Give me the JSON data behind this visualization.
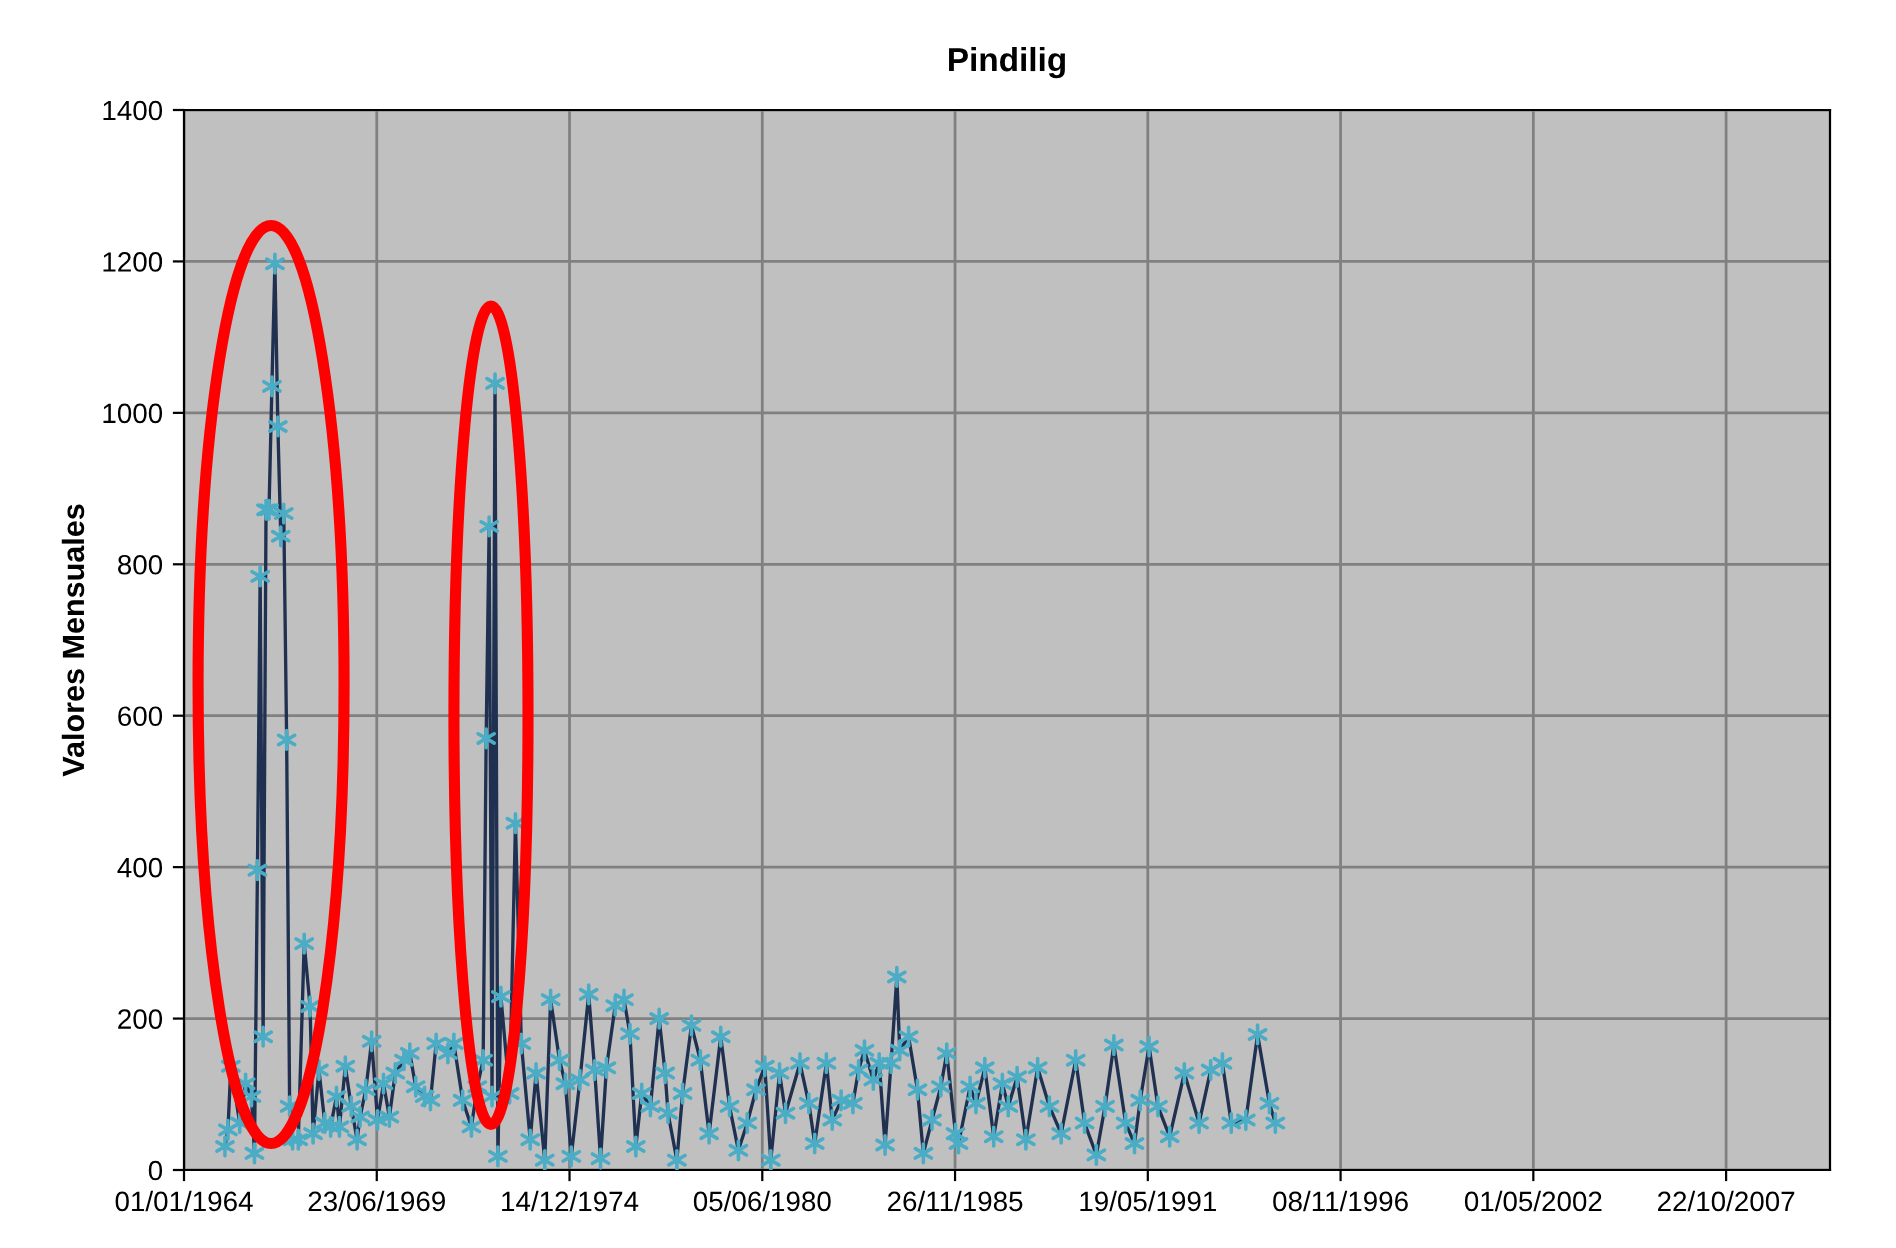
{
  "chart_data": {
    "type": "line",
    "title": "Pindilig",
    "ylabel": "Valores Mensuales",
    "x": [
      "1965-03",
      "1965-04",
      "1965-05",
      "1965-08",
      "1965-10",
      "1965-12",
      "1966-01",
      "1966-02",
      "1966-03",
      "1966-04",
      "1966-05",
      "1966-06",
      "1966-07",
      "1966-08",
      "1966-09",
      "1966-10",
      "1966-11",
      "1966-12",
      "1967-01",
      "1967-02",
      "1967-04",
      "1967-06",
      "1967-08",
      "1967-09",
      "1967-11",
      "1968-01",
      "1968-03",
      "1968-05",
      "1968-06",
      "1968-08",
      "1968-10",
      "1968-12",
      "1969-01",
      "1969-03",
      "1969-05",
      "1969-07",
      "1969-09",
      "1969-11",
      "1970-01",
      "1970-04",
      "1970-06",
      "1970-08",
      "1970-11",
      "1971-01",
      "1971-03",
      "1971-07",
      "1971-09",
      "1971-12",
      "1972-03",
      "1972-05",
      "1972-07",
      "1972-08",
      "1972-09",
      "1972-10",
      "1972-11",
      "1972-12",
      "1973-01",
      "1973-04",
      "1973-06",
      "1973-08",
      "1973-11",
      "1974-01",
      "1974-04",
      "1974-06",
      "1974-09",
      "1974-11",
      "1975-01",
      "1975-04",
      "1975-07",
      "1975-09",
      "1975-11",
      "1976-01",
      "1976-04",
      "1976-07",
      "1976-09",
      "1976-11",
      "1977-01",
      "1977-04",
      "1977-07",
      "1977-09",
      "1977-10",
      "1978-01",
      "1978-03",
      "1978-06",
      "1978-09",
      "1978-12",
      "1979-04",
      "1979-07",
      "1979-10",
      "1980-01",
      "1980-04",
      "1980-07",
      "1980-09",
      "1980-12",
      "1981-02",
      "1981-07",
      "1981-10",
      "1981-12",
      "1982-04",
      "1982-06",
      "1982-09",
      "1983-01",
      "1983-03",
      "1983-05",
      "1983-08",
      "1983-10",
      "1983-12",
      "1984-02",
      "1984-04",
      "1984-05",
      "1984-08",
      "1984-11",
      "1985-01",
      "1985-04",
      "1985-07",
      "1985-09",
      "1985-12",
      "1986-01",
      "1986-05",
      "1986-07",
      "1986-10",
      "1987-01",
      "1987-04",
      "1987-06",
      "1987-09",
      "1987-12",
      "1988-04",
      "1988-08",
      "1988-12",
      "1989-05",
      "1989-08",
      "1989-12",
      "1990-03",
      "1990-06",
      "1990-10",
      "1991-01",
      "1991-03",
      "1991-06",
      "1991-09",
      "1992-01",
      "1992-06",
      "1992-11",
      "1993-03",
      "1993-07",
      "1993-10",
      "1994-03",
      "1994-07",
      "1994-11",
      "1995-01"
    ],
    "series": [
      {
        "color": "#1f3050",
        "colors": [
          "#4bacc6",
          "#4bacc6",
          "#4bacc6",
          "#4bacc6",
          "#4bacc6",
          "#4bacc6",
          "#4bacc6",
          "#4bacc6",
          "#4bacc6",
          "#4bacc6",
          "#4bacc6",
          "#4bacc6",
          "#4bacc6",
          "#4bacc6",
          "#4bacc6",
          "#4bacc6",
          "#4bacc6",
          "#4bacc6",
          "#4bacc6",
          "#4bacc6",
          "#4bacc6",
          "#4bacc6",
          "#4bacc6",
          "#4bacc6",
          "#4bacc6",
          "#4bacc6",
          "#4bacc6",
          "#4bacc6",
          "#4bacc6",
          "#4bacc6",
          "#4bacc6",
          "#4bacc6",
          "#4bacc6",
          "#4bacc6",
          "#4bacc6",
          "#4bacc6",
          "#4bacc6",
          "#4bacc6",
          "#4bacc6",
          "#4bacc6",
          "#4bacc6",
          "#4bacc6",
          "#4bacc6",
          "#4bacc6",
          "#4bacc6",
          "#4bacc6",
          "#4bacc6",
          "#4bacc6",
          "#4bacc6",
          "#4bacc6",
          "#4bacc6",
          "#4bacc6",
          "#4bacc6",
          "#4bacc6",
          "#4bacc6",
          "#4bacc6",
          "#4bacc6",
          "#4bacc6",
          "#4bacc6",
          "#4bacc6",
          "#4bacc6",
          "#4bacc6",
          "#4bacc6",
          "#4bacc6",
          "#4bacc6",
          "#4bacc6",
          "#4bacc6",
          "#4bacc6",
          "#4bacc6",
          "#4bacc6",
          "#4bacc6",
          "#4bacc6",
          "#4bacc6",
          "#4bacc6",
          "#4bacc6",
          "#4bacc6",
          "#4bacc6",
          "#4bacc6",
          "#4bacc6",
          "#4bacc6",
          "#4bacc6",
          "#4bacc6",
          "#4bacc6",
          "#4bacc6",
          "#4bacc6",
          "#4bacc6",
          "#4bacc6",
          "#4bacc6",
          "#4bacc6",
          "#4bacc6",
          "#4bacc6",
          "#4bacc6",
          "#4bacc6",
          "#4bacc6",
          "#4bacc6",
          "#4bacc6",
          "#4bacc6",
          "#4bacc6",
          "#4bacc6",
          "#4bacc6",
          "#4bacc6",
          "#4bacc6",
          "#4bacc6",
          "#4bacc6",
          "#4bacc6",
          "#4bacc6",
          "#4bacc6",
          "#4bacc6",
          "#4bacc6",
          "#4bacc6",
          "#4bacc6",
          "#4bacc6",
          "#4bacc6",
          "#4bacc6",
          "#4bacc6",
          "#4bacc6",
          "#4bacc6",
          "#4bacc6",
          "#4bacc6",
          "#4bacc6",
          "#4bacc6",
          "#4bacc6",
          "#4bacc6",
          "#4bacc6",
          "#4bacc6",
          "#4bacc6",
          "#4bacc6",
          "#4bacc6",
          "#4bacc6",
          "#4bacc6",
          "#4bacc6",
          "#4bacc6",
          "#4bacc6",
          "#4bacc6",
          "#4bacc6",
          "#4bacc6",
          "#4bacc6",
          "#4bacc6",
          "#4bacc6",
          "#4bacc6",
          "#4bacc6",
          "#4bacc6",
          "#4bacc6",
          "#4bacc6",
          "#4bacc6",
          "#4bacc6",
          "#4bacc6",
          "#4bacc6",
          "#4bacc6"
        ],
        "values": [
          31,
          53,
          137,
          62,
          114,
          97,
          22,
          396,
          784,
          176,
          872,
          872,
          1035,
          1197,
          982,
          837,
          867,
          568,
          84,
          40,
          40,
          299,
          216,
          48,
          132,
          62,
          57,
          97,
          57,
          137,
          84,
          40,
          70,
          106,
          170,
          66,
          114,
          70,
          128,
          145,
          154,
          110,
          97,
          92,
          167,
          154,
          167,
          92,
          57,
          110,
          145,
          570,
          850,
          97,
          1039,
          18,
          229,
          101,
          458,
          167,
          40,
          128,
          13,
          225,
          145,
          114,
          18,
          119,
          232,
          132,
          15,
          135,
          217,
          225,
          180,
          31,
          101,
          84,
          200,
          128,
          75,
          13,
          101,
          191,
          145,
          48,
          176,
          84,
          26,
          62,
          106,
          137,
          13,
          128,
          75,
          141,
          88,
          35,
          141,
          66,
          92,
          88,
          132,
          158,
          119,
          141,
          33,
          141,
          255,
          158,
          176,
          106,
          22,
          66,
          110,
          154,
          48,
          35,
          110,
          88,
          135,
          44,
          114,
          84,
          123,
          40,
          135,
          84,
          48,
          145,
          62,
          20,
          84,
          165,
          62,
          35,
          92,
          163,
          84,
          44,
          128,
          62,
          132,
          141,
          62,
          66,
          179,
          88,
          62
        ]
      }
    ],
    "xlim": [
      "1964-01-01",
      "2010-10-04"
    ],
    "xticks": [
      {
        "value": "1964-01-01",
        "label": "01/01/1964"
      },
      {
        "value": "1969-06-23",
        "label": "23/06/1969"
      },
      {
        "value": "1974-12-14",
        "label": "14/12/1974"
      },
      {
        "value": "1980-06-05",
        "label": "05/06/1980"
      },
      {
        "value": "1985-11-26",
        "label": "26/11/1985"
      },
      {
        "value": "1991-05-19",
        "label": "19/05/1991"
      },
      {
        "value": "1996-11-08",
        "label": "08/11/1996"
      },
      {
        "value": "2002-05-01",
        "label": "01/05/2002"
      },
      {
        "value": "2007-10-22",
        "label": "22/10/2007"
      }
    ],
    "ylim": [
      0,
      1400
    ],
    "yticks": [
      0,
      200,
      400,
      600,
      800,
      1000,
      1200,
      1400
    ],
    "grid": true,
    "legend": false,
    "marker": "cross",
    "line_style": "solid"
  }
}
